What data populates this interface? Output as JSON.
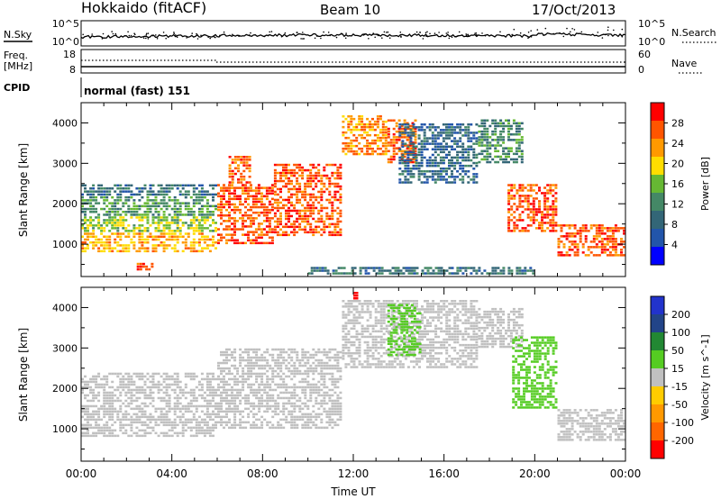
{
  "header": {
    "site": "Hokkaido (fitACF)",
    "beam": "Beam 10",
    "date": "17/Oct/2013"
  },
  "panels": {
    "nsky": {
      "left_label": "N.Sky",
      "right_label": "N.Search",
      "left_ticks": [
        "10^5",
        "10^0"
      ],
      "right_ticks": [
        "10^5",
        "10^0"
      ]
    },
    "freq": {
      "left_label_1": "Freq.",
      "left_label_2": "[MHz]",
      "right_label": "Nave",
      "left_ticks": [
        "18",
        "8"
      ],
      "right_ticks": [
        "60",
        "0"
      ]
    },
    "cpid": {
      "label": "CPID",
      "text": "normal (fast) 151"
    }
  },
  "colors": {
    "power_scale": [
      "#0000ff",
      "#2255aa",
      "#336677",
      "#448866",
      "#66b833",
      "#ffdd00",
      "#ff9900",
      "#ff5500",
      "#ff0000"
    ],
    "velocity_scale": [
      "#ff0000",
      "#ff6600",
      "#ff9900",
      "#ffcc00",
      "#bbbbbb",
      "#55cc22",
      "#228833",
      "#224488",
      "#2233cc"
    ],
    "ground_scatter": "#c0c0c0"
  },
  "chart_data": [
    {
      "type": "heatmap",
      "name": "power",
      "ylabel": "Slant Range [km]",
      "yticks": [
        1000,
        2000,
        3000,
        4000
      ],
      "ylim": [
        200,
        4500
      ],
      "xlim": [
        0,
        24
      ],
      "colorbar": {
        "label": "Power [dB]",
        "ticks": [
          4,
          8,
          12,
          16,
          20,
          24,
          28
        ],
        "range": [
          0,
          32
        ]
      },
      "regions": [
        {
          "x": [
            0.0,
            6.0
          ],
          "y": [
            800,
            1300
          ],
          "v": 22
        },
        {
          "x": [
            0.0,
            6.0
          ],
          "y": [
            1300,
            1700
          ],
          "v": 17
        },
        {
          "x": [
            0.0,
            6.0
          ],
          "y": [
            1700,
            2200
          ],
          "v": 13
        },
        {
          "x": [
            0.0,
            6.0
          ],
          "y": [
            2200,
            2500
          ],
          "v": 9
        },
        {
          "x": [
            2.2,
            3.2
          ],
          "y": [
            350,
            550
          ],
          "v": 27
        },
        {
          "x": [
            6.0,
            8.5
          ],
          "y": [
            1000,
            2500
          ],
          "v": 27
        },
        {
          "x": [
            8.5,
            11.5
          ],
          "y": [
            1200,
            3000
          ],
          "v": 27
        },
        {
          "x": [
            6.5,
            7.5
          ],
          "y": [
            2500,
            3200
          ],
          "v": 26
        },
        {
          "x": [
            11.5,
            13.5
          ],
          "y": [
            3200,
            4200
          ],
          "v": 24
        },
        {
          "x": [
            13.5,
            14.8
          ],
          "y": [
            3000,
            4100
          ],
          "v": 26
        },
        {
          "x": [
            14.0,
            17.5
          ],
          "y": [
            2500,
            4000
          ],
          "v": 8
        },
        {
          "x": [
            17.5,
            19.5
          ],
          "y": [
            3000,
            4100
          ],
          "v": 12
        },
        {
          "x": [
            18.8,
            21.0
          ],
          "y": [
            1300,
            2500
          ],
          "v": 27
        },
        {
          "x": [
            21.0,
            24.0
          ],
          "y": [
            700,
            1500
          ],
          "v": 27
        },
        {
          "x": [
            10.0,
            20.0
          ],
          "y": [
            250,
            450
          ],
          "v": 10
        }
      ]
    },
    {
      "type": "heatmap",
      "name": "velocity",
      "xlabel": "Time UT",
      "ylabel": "Slant Range [km]",
      "xticks": [
        "00:00",
        "04:00",
        "08:00",
        "12:00",
        "16:00",
        "20:00",
        "00:00"
      ],
      "xlim": [
        0,
        24
      ],
      "yticks": [
        1000,
        2000,
        3000,
        4000
      ],
      "ylim": [
        200,
        4500
      ],
      "colorbar": {
        "label": "Velocity [m s^-1]",
        "ticks": [
          200,
          100,
          50,
          15,
          -15,
          -50,
          -100,
          -200
        ],
        "range": [
          -250,
          250
        ]
      },
      "regions": [
        {
          "x": [
            0.0,
            6.0
          ],
          "y": [
            800,
            2400
          ],
          "v": 0
        },
        {
          "x": [
            6.0,
            11.5
          ],
          "y": [
            1000,
            3000
          ],
          "v": 0
        },
        {
          "x": [
            11.5,
            17.5
          ],
          "y": [
            2500,
            4200
          ],
          "v": 0
        },
        {
          "x": [
            17.5,
            19.5
          ],
          "y": [
            3000,
            4000
          ],
          "v": 0
        },
        {
          "x": [
            19.0,
            21.0
          ],
          "y": [
            1500,
            3300
          ],
          "v": 60
        },
        {
          "x": [
            21.0,
            24.0
          ],
          "y": [
            700,
            1500
          ],
          "v": 0
        },
        {
          "x": [
            13.5,
            15.0
          ],
          "y": [
            2800,
            4100
          ],
          "v": 40
        },
        {
          "x": [
            12.0,
            12.2
          ],
          "y": [
            4200,
            4400
          ],
          "v": -230
        }
      ]
    }
  ]
}
